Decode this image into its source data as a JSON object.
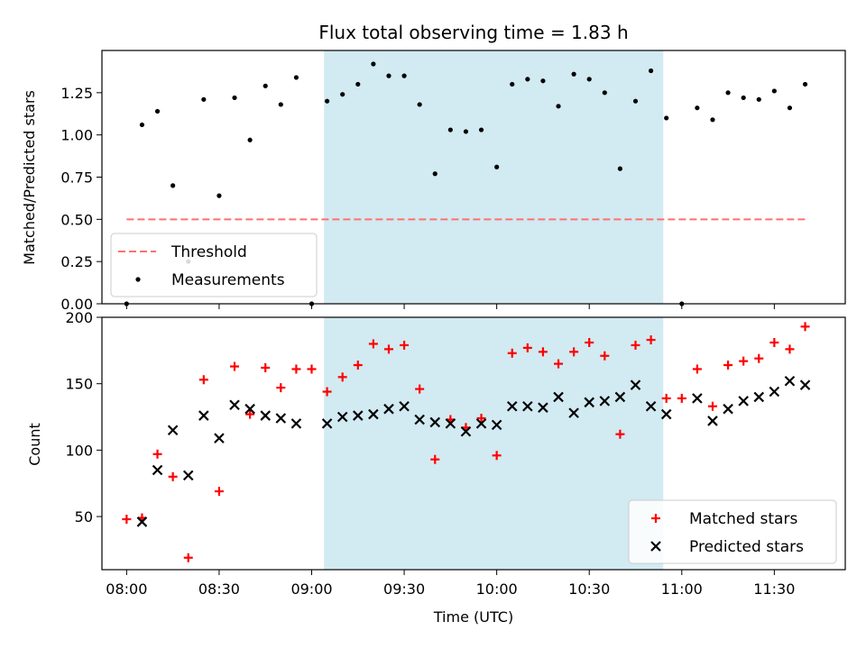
{
  "chart_data": [
    {
      "type": "scatter",
      "title": "Flux total observing time = 1.83 h",
      "ylabel": "Matched/Predicted stars",
      "xlabel": "",
      "ylim": [
        0,
        1.5
      ],
      "yticks": [
        "0.00",
        "0.25",
        "0.50",
        "0.75",
        "1.00",
        "1.25"
      ],
      "shaded_region": {
        "from": "09:04",
        "to": "10:54",
        "color": "#add8e6"
      },
      "threshold": {
        "name": "Threshold",
        "value": 0.5,
        "color": "#ff7070",
        "from": "08:00",
        "to": "11:40"
      },
      "series": [
        {
          "name": "Measurements",
          "color": "#000000",
          "points": [
            [
              "08:00",
              0.0
            ],
            [
              "08:05",
              1.06
            ],
            [
              "08:10",
              1.14
            ],
            [
              "08:15",
              0.7
            ],
            [
              "08:20",
              0.25
            ],
            [
              "08:25",
              1.21
            ],
            [
              "08:30",
              0.64
            ],
            [
              "08:35",
              1.22
            ],
            [
              "08:40",
              0.97
            ],
            [
              "08:45",
              1.29
            ],
            [
              "08:50",
              1.18
            ],
            [
              "08:55",
              1.34
            ],
            [
              "09:00",
              0.0
            ],
            [
              "09:05",
              1.2
            ],
            [
              "09:10",
              1.24
            ],
            [
              "09:15",
              1.3
            ],
            [
              "09:20",
              1.42
            ],
            [
              "09:25",
              1.35
            ],
            [
              "09:30",
              1.35
            ],
            [
              "09:35",
              1.18
            ],
            [
              "09:40",
              0.77
            ],
            [
              "09:45",
              1.03
            ],
            [
              "09:50",
              1.02
            ],
            [
              "09:55",
              1.03
            ],
            [
              "10:00",
              0.81
            ],
            [
              "10:05",
              1.3
            ],
            [
              "10:10",
              1.33
            ],
            [
              "10:15",
              1.32
            ],
            [
              "10:20",
              1.17
            ],
            [
              "10:25",
              1.36
            ],
            [
              "10:30",
              1.33
            ],
            [
              "10:35",
              1.25
            ],
            [
              "10:40",
              0.8
            ],
            [
              "10:45",
              1.2
            ],
            [
              "10:50",
              1.38
            ],
            [
              "10:55",
              1.1
            ],
            [
              "11:00",
              0.0
            ],
            [
              "11:05",
              1.16
            ],
            [
              "11:10",
              1.09
            ],
            [
              "11:15",
              1.25
            ],
            [
              "11:20",
              1.22
            ],
            [
              "11:25",
              1.21
            ],
            [
              "11:30",
              1.26
            ],
            [
              "11:35",
              1.16
            ],
            [
              "11:40",
              1.3
            ]
          ]
        }
      ],
      "legend": {
        "placement": "lower-left",
        "entries": [
          "Threshold",
          "Measurements"
        ]
      }
    },
    {
      "type": "scatter",
      "title": "",
      "ylabel": "Count",
      "xlabel": "Time (UTC)",
      "ylim": [
        10,
        200
      ],
      "yticks": [
        "50",
        "100",
        "150",
        "200"
      ],
      "xlim": [
        "07:52",
        "11:53"
      ],
      "xticks": [
        "08:00",
        "08:30",
        "09:00",
        "09:30",
        "10:00",
        "10:30",
        "11:00",
        "11:30"
      ],
      "shaded_region": {
        "from": "09:04",
        "to": "10:54",
        "color": "#add8e6"
      },
      "series": [
        {
          "name": "Matched stars",
          "color": "#ff0000",
          "marker": "plus",
          "points": [
            [
              "08:00",
              48
            ],
            [
              "08:05",
              49
            ],
            [
              "08:10",
              97
            ],
            [
              "08:15",
              80
            ],
            [
              "08:20",
              19
            ],
            [
              "08:25",
              153
            ],
            [
              "08:30",
              69
            ],
            [
              "08:35",
              163
            ],
            [
              "08:40",
              127
            ],
            [
              "08:45",
              162
            ],
            [
              "08:50",
              147
            ],
            [
              "08:55",
              161
            ],
            [
              "09:00",
              161
            ],
            [
              "09:05",
              144
            ],
            [
              "09:10",
              155
            ],
            [
              "09:15",
              164
            ],
            [
              "09:20",
              180
            ],
            [
              "09:25",
              176
            ],
            [
              "09:30",
              179
            ],
            [
              "09:35",
              146
            ],
            [
              "09:40",
              93
            ],
            [
              "09:45",
              123
            ],
            [
              "09:50",
              117
            ],
            [
              "09:55",
              124
            ],
            [
              "10:00",
              96
            ],
            [
              "10:05",
              173
            ],
            [
              "10:10",
              177
            ],
            [
              "10:15",
              174
            ],
            [
              "10:20",
              165
            ],
            [
              "10:25",
              174
            ],
            [
              "10:30",
              181
            ],
            [
              "10:35",
              171
            ],
            [
              "10:40",
              112
            ],
            [
              "10:45",
              179
            ],
            [
              "10:50",
              183
            ],
            [
              "10:55",
              139
            ],
            [
              "11:00",
              139
            ],
            [
              "11:05",
              161
            ],
            [
              "11:10",
              133
            ],
            [
              "11:15",
              164
            ],
            [
              "11:20",
              167
            ],
            [
              "11:25",
              169
            ],
            [
              "11:30",
              181
            ],
            [
              "11:35",
              176
            ],
            [
              "11:40",
              193
            ]
          ]
        },
        {
          "name": "Predicted stars",
          "color": "#000000",
          "marker": "x",
          "points": [
            [
              "08:05",
              46
            ],
            [
              "08:10",
              85
            ],
            [
              "08:15",
              115
            ],
            [
              "08:20",
              81
            ],
            [
              "08:25",
              126
            ],
            [
              "08:30",
              109
            ],
            [
              "08:35",
              134
            ],
            [
              "08:40",
              131
            ],
            [
              "08:45",
              126
            ],
            [
              "08:50",
              124
            ],
            [
              "08:55",
              120
            ],
            [
              "09:05",
              120
            ],
            [
              "09:10",
              125
            ],
            [
              "09:15",
              126
            ],
            [
              "09:20",
              127
            ],
            [
              "09:25",
              131
            ],
            [
              "09:30",
              133
            ],
            [
              "09:35",
              123
            ],
            [
              "09:40",
              121
            ],
            [
              "09:45",
              120
            ],
            [
              "09:50",
              114
            ],
            [
              "09:55",
              120
            ],
            [
              "10:00",
              119
            ],
            [
              "10:05",
              133
            ],
            [
              "10:10",
              133
            ],
            [
              "10:15",
              132
            ],
            [
              "10:20",
              140
            ],
            [
              "10:25",
              128
            ],
            [
              "10:30",
              136
            ],
            [
              "10:35",
              137
            ],
            [
              "10:40",
              140
            ],
            [
              "10:45",
              149
            ],
            [
              "10:50",
              133
            ],
            [
              "10:55",
              127
            ],
            [
              "11:05",
              139
            ],
            [
              "11:10",
              122
            ],
            [
              "11:15",
              131
            ],
            [
              "11:20",
              137
            ],
            [
              "11:25",
              140
            ],
            [
              "11:30",
              144
            ],
            [
              "11:35",
              152
            ],
            [
              "11:40",
              149
            ]
          ]
        }
      ],
      "legend": {
        "placement": "lower-right",
        "entries": [
          "Matched stars",
          "Predicted stars"
        ]
      }
    }
  ]
}
